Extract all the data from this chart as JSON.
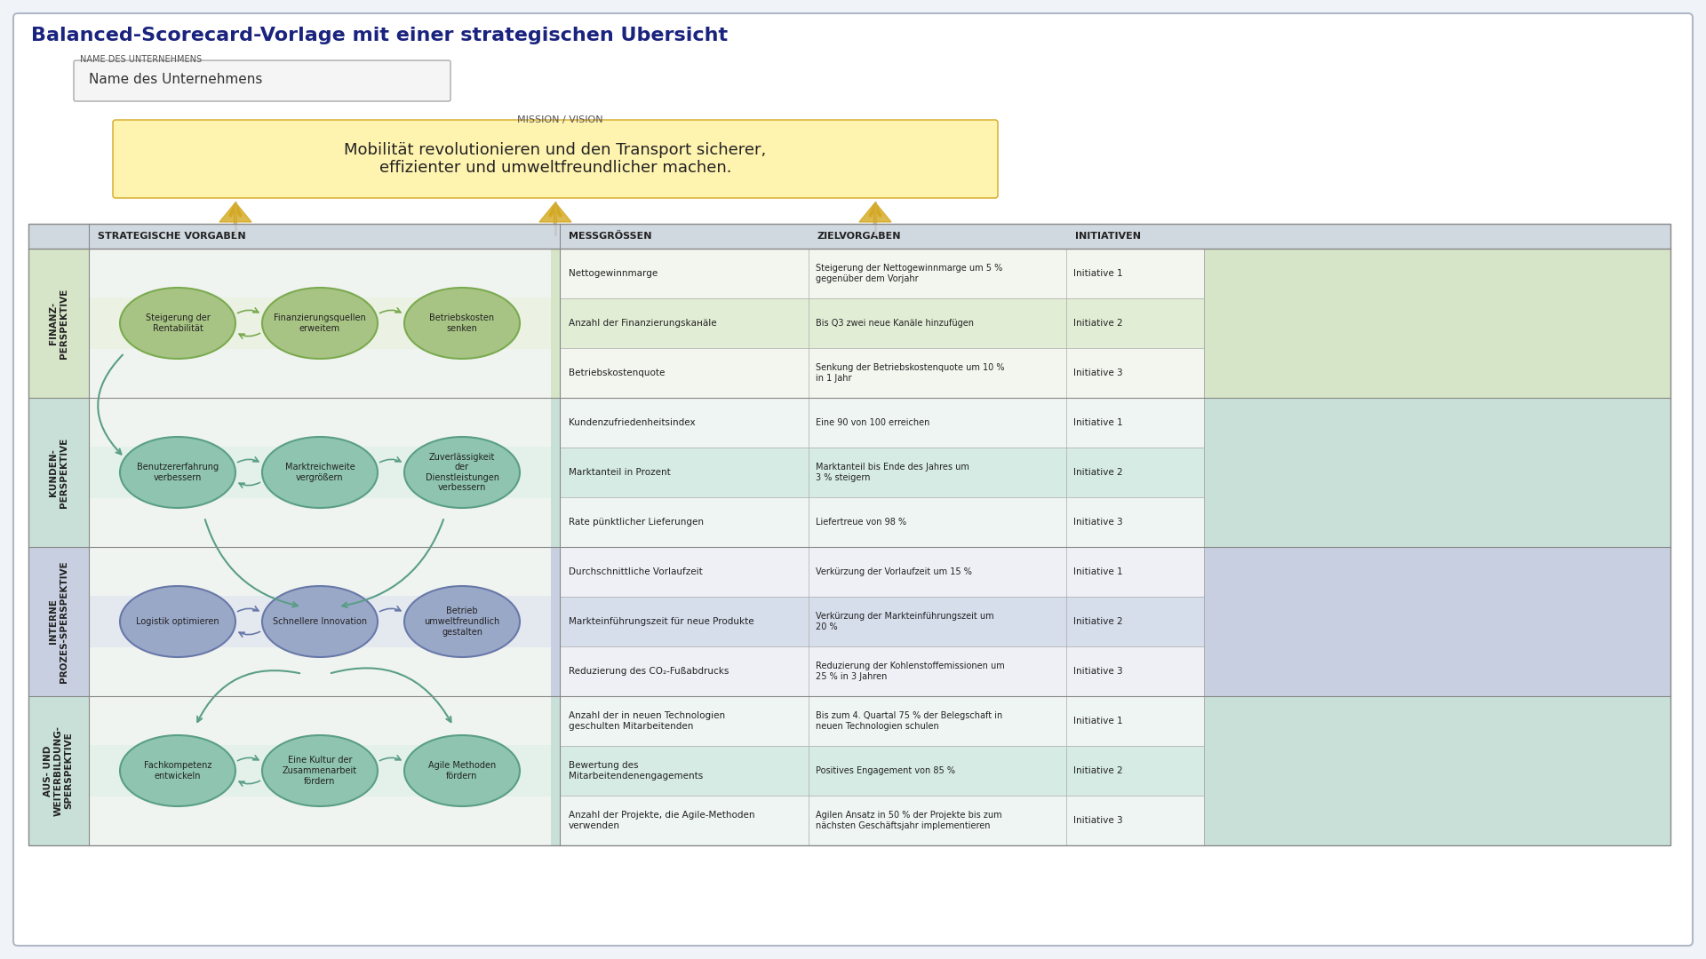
{
  "title": "Balanced-Scorecard-Vorlage mit einer strategischen Ubersicht",
  "company_label": "NAME DES UNTERNEHMENS",
  "company_name": "Name des Unternehmens",
  "mission_label": "MISSION / VISION",
  "mission_text": "Mobilität revolutionieren und den Transport sicherer,\neffizienter und umweltfreundlicher machen.",
  "col_headers": [
    "STRATEGISCHE VORGABEN",
    "MESSGRÖSSEN",
    "ZIELVORGABEN",
    "INITIATIVEN"
  ],
  "perspectives": [
    {
      "label": "FINANZ-\nPERSPEKTIVE",
      "bg_color": "#d6e4c7",
      "stripe_color": "#e8f2dd",
      "ellipse_color": "#a8c484",
      "ellipse_border": "#7aaa50",
      "nodes": [
        "Steigerung der\nRentabilität",
        "Finanzierungsquellen\nerweitem",
        "Betriebskosten\nsenken"
      ],
      "metrics": [
        "Nettogewinnmarge",
        "Anzahl der Finanzierungskанäle",
        "Betriebskostenquote"
      ],
      "targets": [
        "Steigerung der Nettogewinnmarge um 5 %\ngegenüber dem Vorjahr",
        "Bis Q3 zwei neue Kanäle hinzufügen",
        "Senkung der Betriebskostenquote um 10 %\nin 1 Jahr"
      ],
      "initiatives": [
        "Initiative 1",
        "Initiative 2",
        "Initiative 3"
      ],
      "row_colors": [
        "#ffffff",
        "#e8f2dd",
        "#ffffff"
      ]
    },
    {
      "label": "KUNDEN-\nPERSPEKTIVE",
      "bg_color": "#c8e0d8",
      "stripe_color": "#ddf0e8",
      "ellipse_color": "#8ec4b0",
      "ellipse_border": "#5a9e88",
      "nodes": [
        "Benutzererfahrung\nverbessern",
        "Marktreichweite\nvergrößern",
        "Zuverlässigkeit\nder\nDienstleistungen\nverbessern"
      ],
      "metrics": [
        "Kundenzufriedenheitsindex",
        "Marktanteil in Prozent",
        "Rate pünktlicher Lieferungen"
      ],
      "targets": [
        "Eine 90 von 100 erreichen",
        "Marktanteil bis Ende des Jahres um\n3 % steigern",
        "Liefertreue von 98 %"
      ],
      "initiatives": [
        "Initiative 1",
        "Initiative 2",
        "Initiative 3"
      ],
      "row_colors": [
        "#ffffff",
        "#ddf0e8",
        "#ffffff"
      ]
    },
    {
      "label": "INTERNE\nPROZES-SPERSPEKTIVE",
      "bg_color": "#c8cfe0",
      "stripe_color": "#dde3f0",
      "ellipse_color": "#9aa8c8",
      "ellipse_border": "#6878a8",
      "nodes": [
        "Logistik optimieren",
        "Schnellere Innovation",
        "Betrieb\numweltfreundlich\ngestalten"
      ],
      "metrics": [
        "Durchschnittliche Vorlaufzeit",
        "Markteinführungszeit für neue Produkte",
        "Reduzierung des CO₂-Fußabdrucks"
      ],
      "targets": [
        "Verkürzung der Vorlaufzeit um 15 %",
        "Verkürzung der Markteinführungszeit um\n20 %",
        "Reduzierung der Kohlenstoffemissionen um\n25 % in 3 Jahren"
      ],
      "initiatives": [
        "Initiative 1",
        "Initiative 2",
        "Initiative 3"
      ],
      "row_colors": [
        "#ffffff",
        "#dde3f0",
        "#ffffff"
      ]
    },
    {
      "label": "AUS- UND\nWEITERBILDUNG-\nSPERSPEKTIVE",
      "bg_color": "#c8e0d8",
      "stripe_color": "#ddf0e8",
      "ellipse_color": "#8ec4b0",
      "ellipse_border": "#5a9e88",
      "nodes": [
        "Fachkompetenz\nentwickeln",
        "Eine Kultur der\nZusammenarbeit\nfördern",
        "Agile Methoden\nfördern"
      ],
      "metrics": [
        "Anzahl der in neuen Technologien\ngeschulten Mitarbeitenden",
        "Bewertung des\nMitarbeitendenengagements",
        "Anzahl der Projekte, die Agile-Methoden\nverwenden"
      ],
      "targets": [
        "Bis zum 4. Quartal 75 % der Belegschaft in\nneuen Technologien schulen",
        "Positives Engagement von 85 %",
        "Agilen Ansatz in 50 % der Projekte bis zum\nnächsten Geschäftsjahr implementieren"
      ],
      "initiatives": [
        "Initiative 1",
        "Initiative 2",
        "Initiative 3"
      ],
      "row_colors": [
        "#ffffff",
        "#ddf0e8",
        "#ffffff"
      ]
    }
  ],
  "bg_color": "#f0f4f8",
  "panel_bg": "#ffffff",
  "header_bg": "#d0d8e0",
  "arrow_color_gold": "#d4a820",
  "arrow_color_teal": "#5a9e88"
}
